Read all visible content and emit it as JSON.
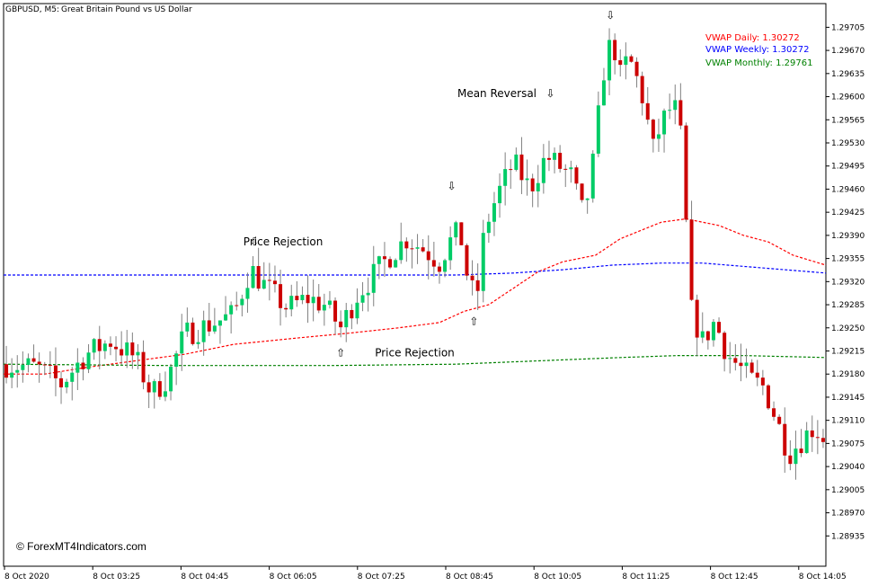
{
  "header": {
    "symbol": "GBPUSD, M5:",
    "description": "Great Britain Pound vs US Dollar"
  },
  "watermark": "© ForexMT4Indicators.com",
  "legend": [
    {
      "label": "VWAP Daily: 1.30272",
      "color": "#ff0000"
    },
    {
      "label": "VWAP Weekly: 1.30272",
      "color": "#0000ff"
    },
    {
      "label": "VWAP Monthly: 1.29761",
      "color": "#008000"
    }
  ],
  "annotations": [
    {
      "text": "Price Rejection",
      "arrow": "down",
      "arrow_time": 0.305,
      "arrow_price": 1.2938,
      "text_time": 0.34,
      "text_price": 1.2938
    },
    {
      "text": "Price Rejection",
      "arrow": "up",
      "arrow_time": 0.41,
      "arrow_price": 1.29212,
      "text_time": 0.5,
      "text_price": 1.29212
    },
    {
      "text": "Mean Reversal",
      "arrow": "down",
      "arrow_time": 0.665,
      "arrow_price": 1.29605,
      "text_time": 0.6,
      "text_price": 1.29605
    },
    {
      "arrow": "down",
      "arrow_time": 0.545,
      "arrow_price": 1.29465
    },
    {
      "arrow": "up",
      "arrow_time": 0.572,
      "arrow_price": 1.2926
    },
    {
      "arrow": "down",
      "arrow_time": 0.738,
      "arrow_price": 1.29723
    }
  ],
  "chart_data": {
    "type": "candlestick",
    "ylim": [
      1.289,
      1.2973
    ],
    "y_ticks": [
      "1.29705",
      "1.29670",
      "1.29635",
      "1.29600",
      "1.29565",
      "1.29530",
      "1.29495",
      "1.29460",
      "1.29425",
      "1.29390",
      "1.29355",
      "1.29320",
      "1.29285",
      "1.29250",
      "1.29215",
      "1.29180",
      "1.29145",
      "1.29110",
      "1.29075",
      "1.29040",
      "1.29005",
      "1.28970",
      "1.28935"
    ],
    "x_ticks": [
      "8 Oct 2020",
      "8 Oct 03:25",
      "8 Oct 04:45",
      "8 Oct 06:05",
      "8 Oct 07:25",
      "8 Oct 08:45",
      "8 Oct 10:05",
      "8 Oct 11:25",
      "8 Oct 12:45",
      "8 Oct 14:05"
    ],
    "up_color": "#00cc66",
    "down_color": "#cc0000",
    "price_path": [
      [
        0.0,
        1.29195
      ],
      [
        0.04,
        1.2919
      ],
      [
        0.07,
        1.29165
      ],
      [
        0.1,
        1.2921
      ],
      [
        0.13,
        1.2923
      ],
      [
        0.16,
        1.29205
      ],
      [
        0.18,
        1.2915
      ],
      [
        0.2,
        1.29175
      ],
      [
        0.22,
        1.2924
      ],
      [
        0.25,
        1.29255
      ],
      [
        0.28,
        1.2927
      ],
      [
        0.3,
        1.2934
      ],
      [
        0.32,
        1.2931
      ],
      [
        0.345,
        1.2928
      ],
      [
        0.37,
        1.29295
      ],
      [
        0.39,
        1.29285
      ],
      [
        0.41,
        1.2925
      ],
      [
        0.43,
        1.293
      ],
      [
        0.45,
        1.2933
      ],
      [
        0.47,
        1.2936
      ],
      [
        0.49,
        1.29385
      ],
      [
        0.51,
        1.2937
      ],
      [
        0.53,
        1.2935
      ],
      [
        0.545,
        1.29385
      ],
      [
        0.555,
        1.29395
      ],
      [
        0.565,
        1.2932
      ],
      [
        0.575,
        1.2929
      ],
      [
        0.585,
        1.294
      ],
      [
        0.6,
        1.2945
      ],
      [
        0.62,
        1.295
      ],
      [
        0.64,
        1.2946
      ],
      [
        0.66,
        1.2951
      ],
      [
        0.675,
        1.29495
      ],
      [
        0.69,
        1.2948
      ],
      [
        0.705,
        1.2942
      ],
      [
        0.715,
        1.2948
      ],
      [
        0.73,
        1.2964
      ],
      [
        0.74,
        1.2969
      ],
      [
        0.75,
        1.2963
      ],
      [
        0.76,
        1.2966
      ],
      [
        0.775,
        1.2961
      ],
      [
        0.79,
        1.2952
      ],
      [
        0.8,
        1.2956
      ],
      [
        0.815,
        1.2959
      ],
      [
        0.825,
        1.2953
      ],
      [
        0.835,
        1.2928
      ],
      [
        0.85,
        1.2923
      ],
      [
        0.865,
        1.2926
      ],
      [
        0.88,
        1.2921
      ],
      [
        0.895,
        1.2919
      ],
      [
        0.91,
        1.2917
      ],
      [
        0.925,
        1.2916
      ],
      [
        0.94,
        1.2911
      ],
      [
        0.955,
        1.2906
      ],
      [
        0.97,
        1.2908
      ],
      [
        0.985,
        1.291
      ],
      [
        1.0,
        1.2908
      ]
    ],
    "series": [
      {
        "name": "VWAP Daily",
        "color": "#ff0000",
        "points": [
          [
            0.0,
            1.2918
          ],
          [
            0.05,
            1.2918
          ],
          [
            0.1,
            1.2919
          ],
          [
            0.16,
            1.292
          ],
          [
            0.22,
            1.2921
          ],
          [
            0.28,
            1.29225
          ],
          [
            0.32,
            1.2923
          ],
          [
            0.36,
            1.29235
          ],
          [
            0.42,
            1.29242
          ],
          [
            0.48,
            1.2925
          ],
          [
            0.53,
            1.29258
          ],
          [
            0.56,
            1.29275
          ],
          [
            0.59,
            1.29285
          ],
          [
            0.62,
            1.2931
          ],
          [
            0.65,
            1.29335
          ],
          [
            0.68,
            1.2935
          ],
          [
            0.72,
            1.2936
          ],
          [
            0.75,
            1.29385
          ],
          [
            0.78,
            1.294
          ],
          [
            0.8,
            1.2941
          ],
          [
            0.83,
            1.29415
          ],
          [
            0.87,
            1.29405
          ],
          [
            0.9,
            1.2939
          ],
          [
            0.93,
            1.2938
          ],
          [
            0.96,
            1.2936
          ],
          [
            1.0,
            1.29345
          ]
        ]
      },
      {
        "name": "VWAP Weekly",
        "color": "#0000ff",
        "points": [
          [
            0.0,
            1.2933
          ],
          [
            0.2,
            1.2933
          ],
          [
            0.4,
            1.2933
          ],
          [
            0.55,
            1.2933
          ],
          [
            0.62,
            1.29333
          ],
          [
            0.68,
            1.29338
          ],
          [
            0.74,
            1.29345
          ],
          [
            0.8,
            1.29348
          ],
          [
            0.85,
            1.29348
          ],
          [
            0.9,
            1.29343
          ],
          [
            0.95,
            1.29338
          ],
          [
            1.0,
            1.29333
          ]
        ]
      },
      {
        "name": "VWAP Monthly",
        "color": "#008000",
        "points": [
          [
            0.0,
            1.29195
          ],
          [
            0.2,
            1.29193
          ],
          [
            0.4,
            1.29193
          ],
          [
            0.55,
            1.29195
          ],
          [
            0.65,
            1.292
          ],
          [
            0.75,
            1.29205
          ],
          [
            0.82,
            1.29208
          ],
          [
            0.9,
            1.29208
          ],
          [
            1.0,
            1.29205
          ]
        ]
      }
    ]
  }
}
